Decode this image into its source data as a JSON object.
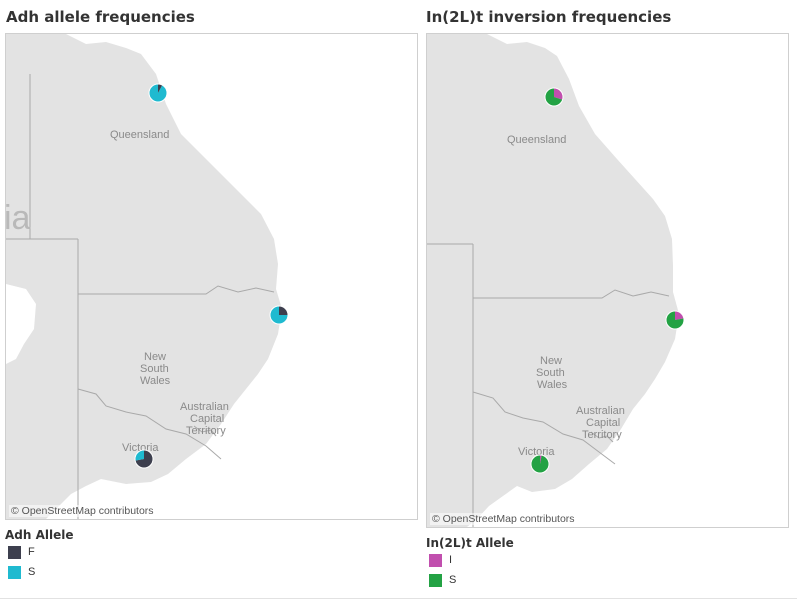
{
  "left_panel": {
    "title": "Adh allele frequencies",
    "attribution": "© OpenStreetMap contributors",
    "map_labels": {
      "region_fragment": "ia",
      "queensland": "Queensland",
      "nsw_line1": "New",
      "nsw_line2": "South",
      "nsw_line3": "Wales",
      "act_line1": "Australian",
      "act_line2": "Capital",
      "act_line3": "Territory",
      "victoria": "Victoria"
    },
    "legend": {
      "title": "Adh Allele",
      "items": [
        {
          "label": "F",
          "color": "#3d3f4e"
        },
        {
          "label": "S",
          "color": "#1fbad0"
        }
      ]
    },
    "pies": [
      {
        "location": "north-queensland",
        "values": [
          0.08,
          0.92
        ]
      },
      {
        "location": "nsw-coast",
        "values": [
          0.25,
          0.75
        ]
      },
      {
        "location": "victoria",
        "values": [
          0.72,
          0.28
        ]
      }
    ]
  },
  "right_panel": {
    "title": "In(2L)t inversion frequencies",
    "attribution": "© OpenStreetMap contributors",
    "map_labels": {
      "queensland": "Queensland",
      "nsw_line1": "New",
      "nsw_line2": "South",
      "nsw_line3": "Wales",
      "act_line1": "Australian",
      "act_line2": "Capital",
      "act_line3": "Territory",
      "victoria": "Victoria"
    },
    "legend": {
      "title": "In(2L)t Allele",
      "items": [
        {
          "label": "I",
          "color": "#c14fae"
        },
        {
          "label": "S",
          "color": "#23a244"
        }
      ]
    },
    "pies": [
      {
        "location": "north-queensland",
        "values": [
          0.3,
          0.7
        ]
      },
      {
        "location": "nsw-coast",
        "values": [
          0.22,
          0.78
        ]
      },
      {
        "location": "victoria",
        "values": [
          0.03,
          0.97
        ]
      }
    ]
  },
  "colors": {
    "land": "#e3e3e3",
    "sea": "#ffffff",
    "border": "#a9a9a9",
    "pie_outline": "#ffffff"
  }
}
